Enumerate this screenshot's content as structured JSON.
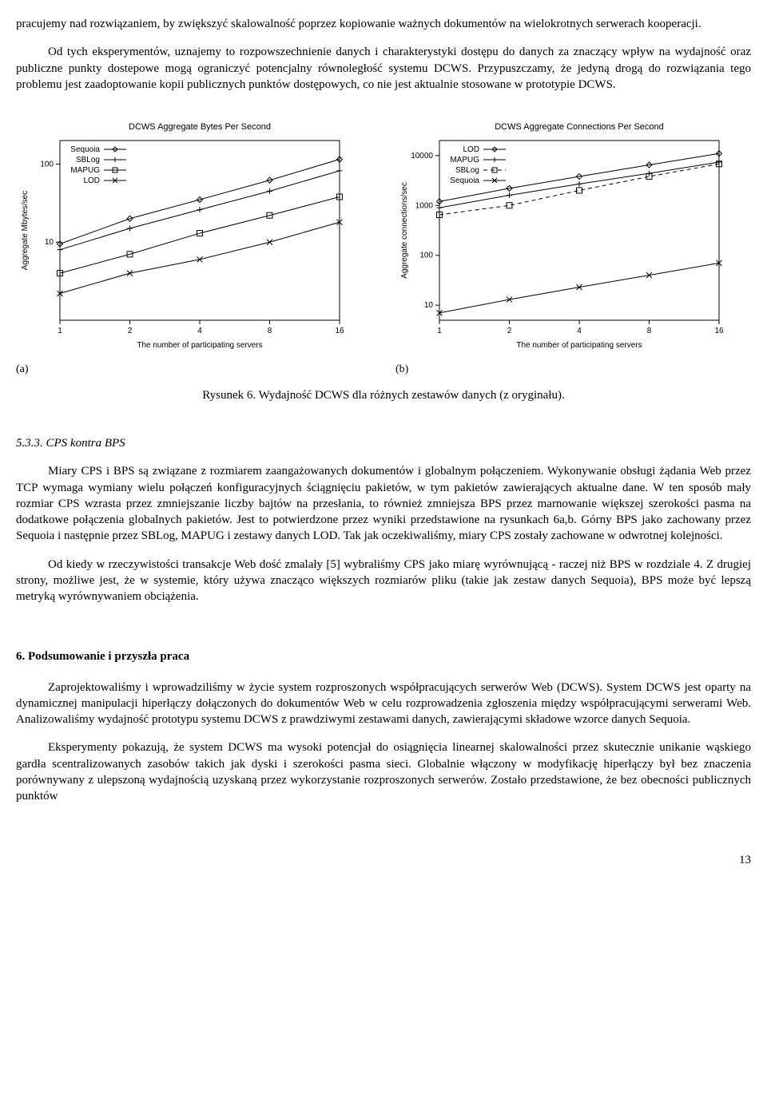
{
  "paragraphs": {
    "top1": "pracujemy nad rozwiązaniem, by zwiększyć skalowalność poprzez kopiowanie ważnych dokumentów na wielokrotnych serwerach kooperacji.",
    "top2": "Od tych eksperymentów, uznajemy to rozpowszechnienie danych i charakterystyki dostępu do danych za znaczący wpływ na wydajność oraz publiczne punkty dostepowe mogą ograniczyć potencjalny równoległość systemu DCWS. Przypuszczamy, że jedyną drogą do rozwiązania tego problemu jest  zaadoptowanie kopii publicznych punktów dostępowych, co nie jest aktualnie stosowane w prototypie DCWS.",
    "caption": "Rysunek 6. Wydajność DCWS dla różnych zestawów danych (z oryginału).",
    "sec533_title": "5.3.3. CPS kontra BPS",
    "sec533_p1": "Miary CPS i BPS są związane  z rozmiarem zaangażowanych dokumentów i globalnym połączeniem. Wykonywanie obsługi żądania Web przez  TCP wymaga wymiany wielu połączeń konfiguracyjnych ściągnięciu pakietów, w tym pakietów zawierających aktualne dane. W ten sposób mały rozmiar  CPS wzrasta przez zmniejszanie liczby bajtów na przesłania, to również zmniejsza BPS przez marnowanie większej szerokości pasma na dodatkowe połączenia globalnych pakietów. Jest to  potwierdzone przez wyniki przedstawione na rysunkach 6a,b. Górny BPS jako zachowany przez  Sequoia i następnie przez  SBLog, MAPUG i zestawy danych LOD. Tak jak oczekiwaliśmy, miary CPS zostały zachowane w odwrotnej kolejności.",
    "sec533_p2": "Od kiedy w rzeczywistości transakcje Web dość zmalały [5] wybraliśmy  CPS jako miarę wyrównującą - raczej niż BPS w rozdziale 4. Z drugiej strony, możliwe jest, że w systemie, który używa znacząco większych rozmiarów pliku (takie jak zestaw danych Sequoia), BPS może być lepszą metryką wyrównywaniem obciążenia.",
    "sec6_title": "6. Podsumowanie i przyszła praca",
    "sec6_p1": "Zaprojektowaliśmy i wprowadziliśmy w życie system rozproszonych współpracujących serwerów Web (DCWS). System DCWS jest oparty na dynamicznej manipulacji hiperłączy dołączonych do dokumentów Web w celu rozprowadzenia zgłoszenia między współpracującymi serwerami Web. Analizowaliśmy wydajność prototypu systemu DCWS z prawdziwymi zestawami danych, zawierającymi składowe wzorce danych Sequoia.",
    "sec6_p2": "Eksperymenty pokazują, że system DCWS ma wysoki potencjał do osiągnięcia linearnej skalowalności przez skutecznie unikanie wąskiego gardła scentralizowanych zasobów takich jak dyski i szerokości pasma sieci. Globalnie włączony w modyfikację hiperłączy był bez znaczenia  porównywany z ulepszoną wydajnością uzyskaną przez wykorzystanie rozproszonych serwerów. Zostało przedstawione, że bez obecności publicznych punktów",
    "page_number": "13",
    "sub_a": "(a)",
    "sub_b": "(b)"
  },
  "chartA": {
    "title": "DCWS Aggregate Bytes Per Second",
    "xlabel": "The number of participating servers",
    "ylabel": "Aggregate Mbytes/sec",
    "x_ticks": [
      1,
      2,
      4,
      8,
      16
    ],
    "y_ticks": [
      10,
      100
    ],
    "y_log_min": 1,
    "y_log_max": 200,
    "background": "#ffffff",
    "line_color": "#000000",
    "fontsize": 10,
    "legend_pos": "top-left",
    "legend": [
      "Sequoia",
      "SBLog",
      "MAPUG",
      "LOD"
    ],
    "markers": [
      "diamond",
      "plus",
      "square",
      "x"
    ],
    "series": {
      "Sequoia": {
        "x": [
          1,
          2,
          4,
          8,
          16
        ],
        "y": [
          9.5,
          20,
          35,
          62,
          115
        ],
        "marker": "diamond"
      },
      "SBLog": {
        "x": [
          1,
          2,
          4,
          8,
          16
        ],
        "y": [
          8,
          15,
          26,
          45,
          82
        ],
        "marker": "plus"
      },
      "MAPUG": {
        "x": [
          1,
          2,
          4,
          8,
          16
        ],
        "y": [
          4,
          7,
          13,
          22,
          38
        ],
        "marker": "square"
      },
      "LOD": {
        "x": [
          1,
          2,
          4,
          8,
          16
        ],
        "y": [
          2.2,
          4,
          6,
          10,
          18
        ],
        "marker": "x"
      }
    }
  },
  "chartB": {
    "title": "DCWS Aggregate Connections Per Second",
    "xlabel": "The number of participating servers",
    "ylabel": "Aggregate connections/sec",
    "x_ticks": [
      1,
      2,
      4,
      8,
      16
    ],
    "y_ticks": [
      10,
      100,
      1000,
      10000
    ],
    "y_log_min": 5,
    "y_log_max": 20000,
    "background": "#ffffff",
    "line_color": "#000000",
    "fontsize": 10,
    "legend_pos": "top-left",
    "legend": [
      "LOD",
      "MAPUG",
      "SBLog",
      "Sequoia"
    ],
    "markers": [
      "diamond",
      "plus",
      "square",
      "x"
    ],
    "series": {
      "LOD": {
        "x": [
          1,
          2,
          4,
          8,
          16
        ],
        "y": [
          1200,
          2200,
          3800,
          6500,
          11000
        ],
        "marker": "diamond",
        "dash": false
      },
      "MAPUG": {
        "x": [
          1,
          2,
          4,
          8,
          16
        ],
        "y": [
          900,
          1600,
          2700,
          4400,
          7400
        ],
        "marker": "plus",
        "dash": false
      },
      "SBLog": {
        "x": [
          1,
          2,
          4,
          8,
          16
        ],
        "y": [
          650,
          1000,
          2000,
          3800,
          6800
        ],
        "marker": "square",
        "dash": true
      },
      "Sequoia": {
        "x": [
          1,
          2,
          4,
          8,
          16
        ],
        "y": [
          7,
          13,
          23,
          40,
          70
        ],
        "marker": "x",
        "dash": false
      }
    }
  }
}
